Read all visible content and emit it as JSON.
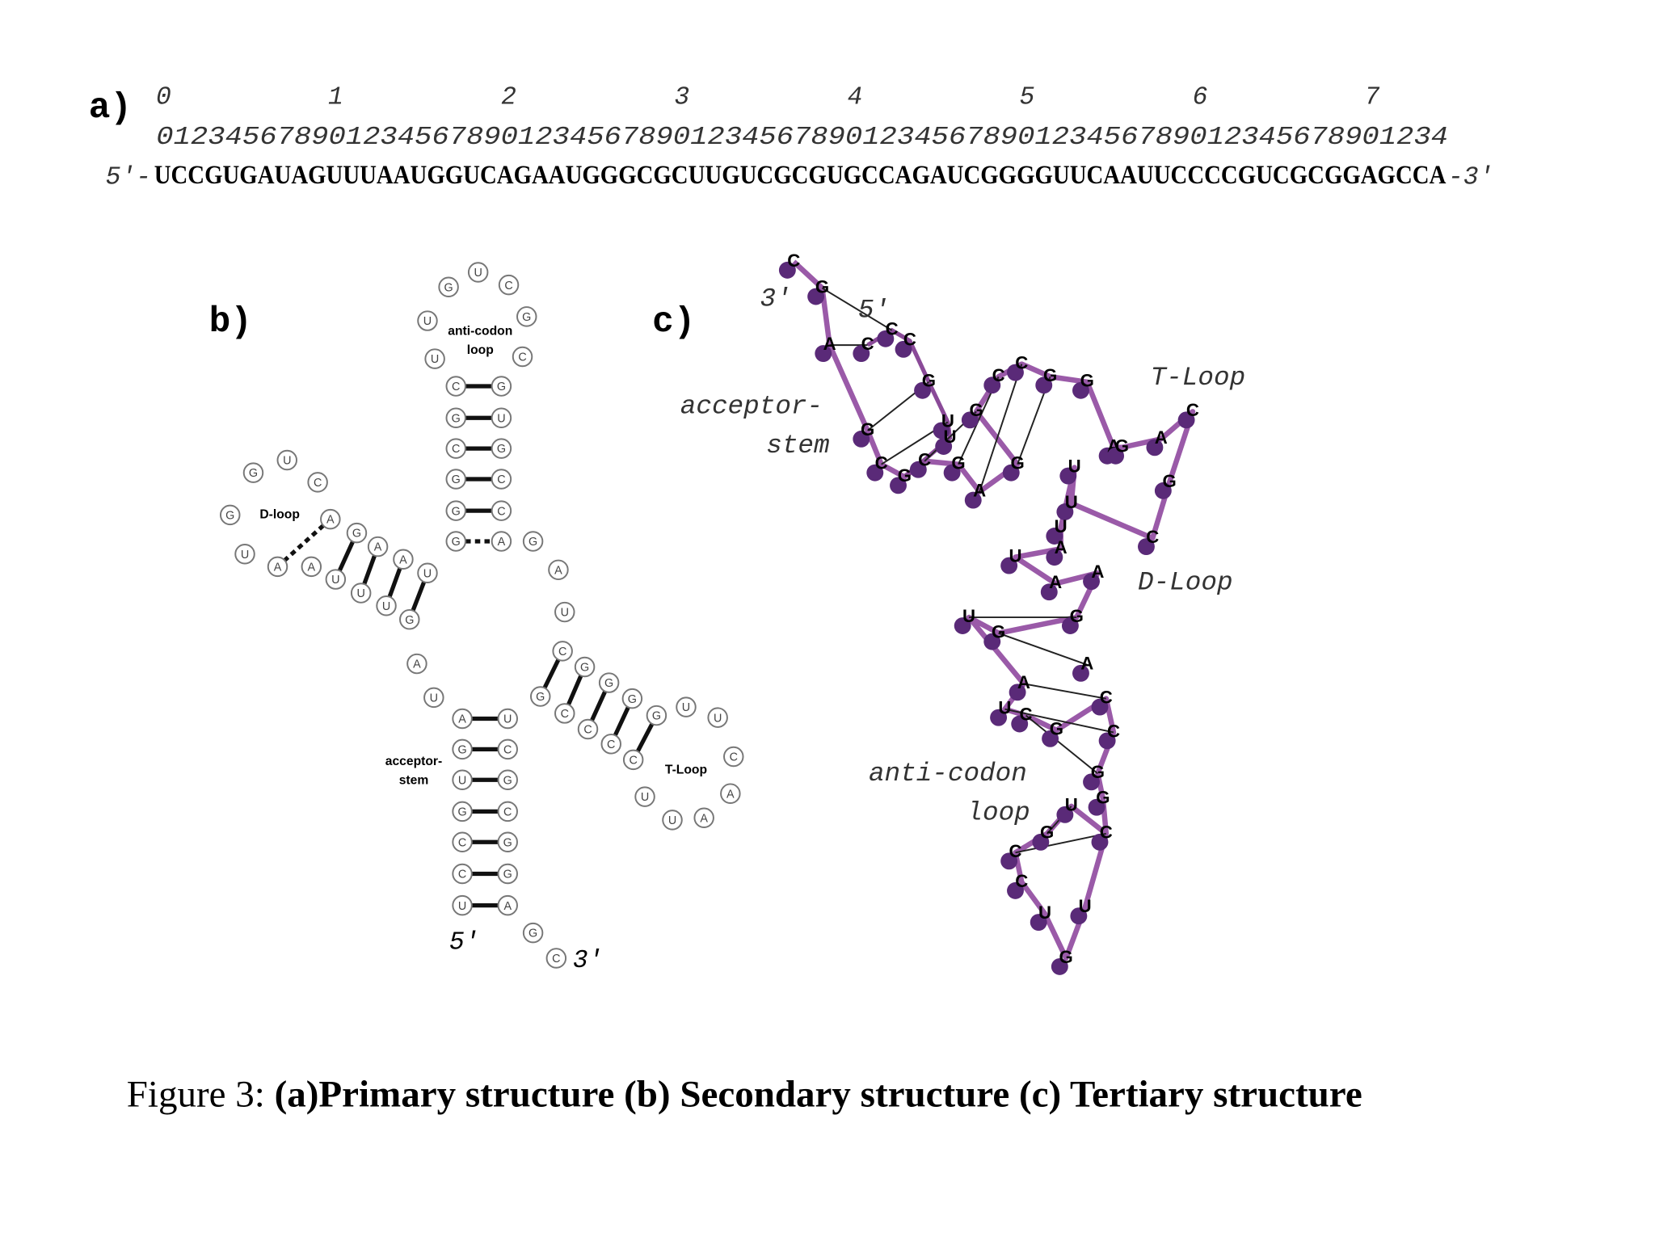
{
  "panel_a": {
    "label": "a)",
    "tens": [
      "0",
      "1",
      "2",
      "3",
      "4",
      "5",
      "6",
      "7"
    ],
    "units": "012345678901234567890123456789012345678901234567890123456789012345678901234",
    "five_prime": "5′-",
    "sequence": "UCCGUGAUAGUUUAAUGGUCAGAAUGGGCGCUUGUCGCGUGCCAGAUCGGGGUUCAAUUCCCCGUCGCGGAGCCA",
    "three_prime": "-3′"
  },
  "panel_b": {
    "label": "b)",
    "nucleotides": [
      "G",
      "U",
      "C",
      "G",
      "C",
      "U",
      "U",
      "C",
      "G",
      "C",
      "G",
      "G",
      "G",
      "G",
      "U",
      "G",
      "C",
      "C",
      "A",
      "G",
      "U",
      "C",
      "G",
      "U",
      "A",
      "A",
      "A",
      "G",
      "A",
      "A",
      "U",
      "U",
      "U",
      "U",
      "G",
      "A",
      "U",
      "A",
      "G",
      "U",
      "G",
      "C",
      "C",
      "U",
      "U",
      "C",
      "G",
      "C",
      "G",
      "G",
      "A",
      "G",
      "C",
      "G",
      "A",
      "U",
      "C",
      "G",
      "G",
      "G",
      "G",
      "U",
      "U",
      "C",
      "A",
      "A",
      "U",
      "U",
      "G",
      "C",
      "C",
      "C",
      "C"
    ],
    "labels": {
      "anticodon_1": "anti-codon",
      "anticodon_2": "loop",
      "d_loop": "D-loop",
      "t_loop": "T-Loop",
      "acceptor_1": "acceptor-",
      "acceptor_2": "stem",
      "five_prime": "5′",
      "three_prime": "3′"
    }
  },
  "panel_c": {
    "label": "c)",
    "nucleotides": [
      "C",
      "G",
      "A",
      "C",
      "C",
      "C",
      "G",
      "U",
      "U",
      "G",
      "C",
      "C",
      "G",
      "G",
      "G",
      "C",
      "G",
      "C",
      "G",
      "A",
      "G",
      "U",
      "A",
      "G",
      "A",
      "C",
      "G",
      "U",
      "C",
      "U",
      "U",
      "A",
      "A",
      "A",
      "U",
      "G",
      "G",
      "A",
      "A",
      "U",
      "C",
      "C",
      "G",
      "C",
      "G",
      "U",
      "G",
      "C",
      "G",
      "C",
      "C",
      "U",
      "U",
      "G"
    ],
    "labels": {
      "three_prime": "3′",
      "five_prime": "5′",
      "acceptor_1": "acceptor-",
      "acceptor_2": "stem",
      "t_loop": "T-Loop",
      "d_loop": "D-Loop",
      "anticodon_1": "anti-codon",
      "anticodon_2": "loop"
    }
  },
  "caption": {
    "prefix": "Figure 3: ",
    "text": "(a)Primary structure (b) Secondary structure (c) Tertiary structure"
  }
}
